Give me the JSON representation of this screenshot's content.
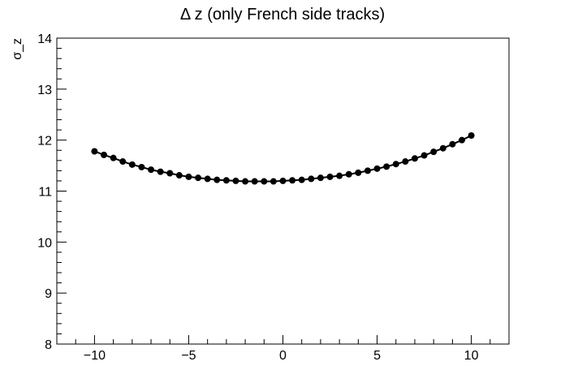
{
  "chart_data": {
    "type": "scatter",
    "title": "Δ z (only French side tracks)",
    "xlabel": "",
    "ylabel": "σ_z",
    "xlim": [
      -12,
      12
    ],
    "ylim": [
      8,
      14
    ],
    "grid": false,
    "x_ticks": [
      -10,
      -5,
      0,
      5,
      10
    ],
    "x_tick_labels": [
      "−10",
      "−5",
      "0",
      "5",
      "10"
    ],
    "y_ticks": [
      8,
      9,
      10,
      11,
      12,
      13,
      14
    ],
    "y_tick_labels": [
      "8",
      "9",
      "10",
      "11",
      "12",
      "13",
      "14"
    ],
    "series": [
      {
        "color": "#000000",
        "marker": "circle",
        "line": true,
        "x": [
          -10.0,
          -9.5,
          -9.0,
          -8.5,
          -8.0,
          -7.5,
          -7.0,
          -6.5,
          -6.0,
          -5.5,
          -5.0,
          -4.5,
          -4.0,
          -3.5,
          -3.0,
          -2.5,
          -2.0,
          -1.5,
          -1.0,
          -0.5,
          0.0,
          0.5,
          1.0,
          1.5,
          2.0,
          2.5,
          3.0,
          3.5,
          4.0,
          4.5,
          5.0,
          5.5,
          6.0,
          6.5,
          7.0,
          7.5,
          8.0,
          8.5,
          9.0,
          9.5,
          10.0
        ],
        "y": [
          11.78,
          11.71,
          11.65,
          11.58,
          11.52,
          11.47,
          11.42,
          11.38,
          11.35,
          11.31,
          11.28,
          11.26,
          11.24,
          11.22,
          11.21,
          11.2,
          11.19,
          11.19,
          11.19,
          11.19,
          11.2,
          11.21,
          11.22,
          11.24,
          11.26,
          11.28,
          11.3,
          11.33,
          11.36,
          11.4,
          11.44,
          11.48,
          11.53,
          11.58,
          11.64,
          11.7,
          11.77,
          11.84,
          11.92,
          12.0,
          12.09
        ]
      }
    ]
  }
}
